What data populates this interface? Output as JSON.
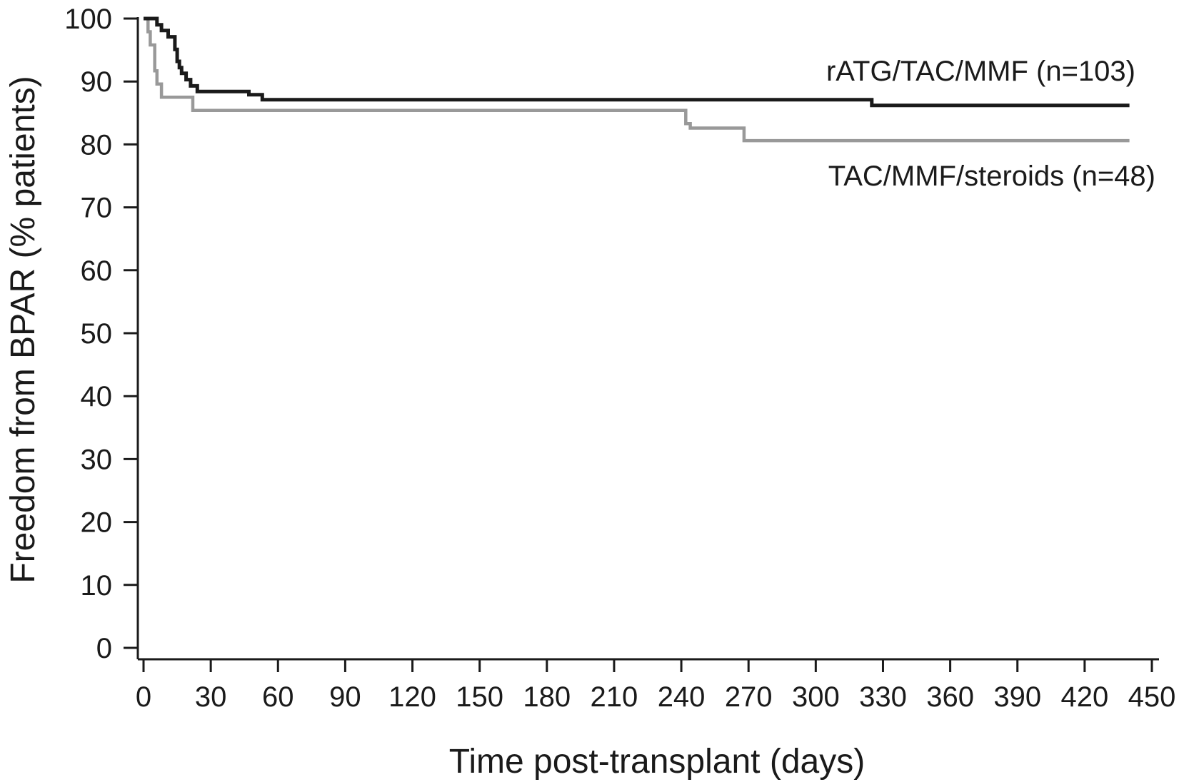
{
  "chart_data": {
    "type": "line",
    "step": true,
    "xlabel": "Time post-transplant (days)",
    "ylabel": "Freedom from BPAR (% patients)",
    "xlim": [
      0,
      450
    ],
    "ylim": [
      0,
      100
    ],
    "xticks": [
      0,
      30,
      60,
      90,
      120,
      150,
      180,
      210,
      240,
      270,
      300,
      330,
      360,
      390,
      420,
      450
    ],
    "yticks": [
      0,
      10,
      20,
      30,
      40,
      50,
      60,
      70,
      80,
      90,
      100
    ],
    "grid": false,
    "legend": "inline labels at right end of curves",
    "series": [
      {
        "name": "TAC/MMF/steroids (n=48)",
        "color": "#999999",
        "x": [
          0,
          2,
          3,
          5,
          6,
          8,
          22,
          51,
          242,
          244,
          268,
          440
        ],
        "y": [
          100,
          97.9,
          95.8,
          91.7,
          89.6,
          87.5,
          85.4,
          85.4,
          83.3,
          82.6,
          80.6,
          80.6
        ]
      },
      {
        "name": "rATG/TAC/MMF (n=103)",
        "color": "#1a1a1a",
        "x": [
          0,
          6,
          8,
          11,
          14,
          15,
          16,
          17,
          19,
          21,
          22,
          24,
          26,
          47,
          49,
          53,
          325,
          440
        ],
        "y": [
          100,
          99,
          98.1,
          97.1,
          95.1,
          93.2,
          92.2,
          91.3,
          90.3,
          89.3,
          89.3,
          88.4,
          88.4,
          87.9,
          87.9,
          87.1,
          86.2,
          86.2
        ]
      }
    ]
  }
}
